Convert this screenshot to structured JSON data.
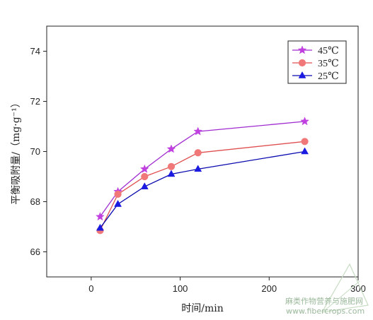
{
  "chart_data": {
    "type": "line",
    "xlabel": "时间/min",
    "ylabel": "平衡吸附量/（mg·g⁻¹）",
    "xlim": [
      -50,
      300
    ],
    "ylim": [
      65,
      75
    ],
    "xticks": [
      0,
      100,
      200,
      300
    ],
    "yticks": [
      66,
      68,
      70,
      72,
      74
    ],
    "x": [
      10,
      30,
      60,
      90,
      120,
      240
    ],
    "series": [
      {
        "name": "45℃",
        "marker": "star",
        "color": "#c040e0",
        "line_color": "#a02cd0",
        "values": [
          67.4,
          68.4,
          69.3,
          70.1,
          70.8,
          71.2
        ]
      },
      {
        "name": "35℃",
        "marker": "circle",
        "color": "#f07878",
        "line_color": "#e05050",
        "values": [
          66.85,
          68.3,
          69.0,
          69.4,
          69.95,
          70.4
        ]
      },
      {
        "name": "25℃",
        "marker": "triangle",
        "color": "#1a1ae0",
        "line_color": "#0a0ab0",
        "values": [
          66.95,
          67.9,
          68.6,
          69.1,
          69.3,
          70.0
        ]
      }
    ],
    "legend_position": "top-right",
    "grid": false
  },
  "watermark": {
    "line1": "麻类作物营养与施肥网",
    "line2": "www.fibercrops.com"
  }
}
